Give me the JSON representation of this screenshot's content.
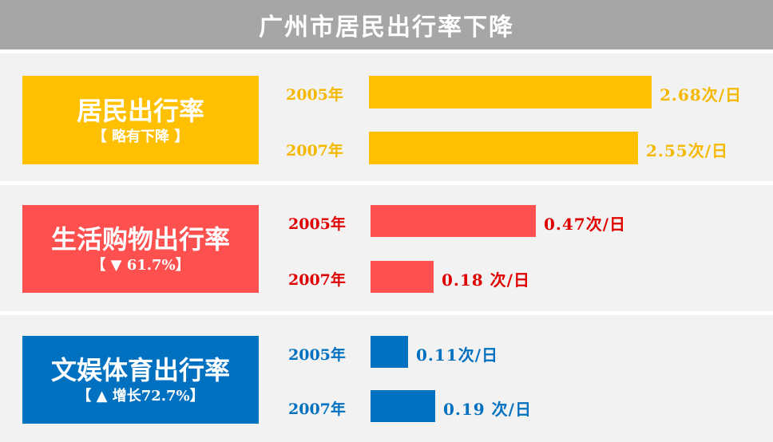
{
  "header": {
    "title": "广州市居民出行率下降"
  },
  "panels": [
    {
      "title": "居民出行率",
      "subtitle": "【 略有下降 】",
      "color": "#ffc000",
      "text_color": "#f5b800",
      "rows": [
        {
          "year": "2005年",
          "value": 2.68,
          "label": "2.68次/日"
        },
        {
          "year": "2007年",
          "value": 2.55,
          "label": "2.55次/日"
        }
      ]
    },
    {
      "title": "生活购物出行率",
      "subtitle": "【  ▼  61.7%】",
      "color": "#ff5050",
      "text_color": "#e00000",
      "rows": [
        {
          "year": "2005年",
          "value": 0.47,
          "label": "0.47次/日"
        },
        {
          "year": "2007年",
          "value": 0.18,
          "label": "0.18 次/日"
        }
      ]
    },
    {
      "title": "文娱体育出行率",
      "subtitle": "【  ▲  增长72.7%】",
      "color": "#0070c0",
      "text_color": "#0070c0",
      "rows": [
        {
          "year": "2005年",
          "value": 0.11,
          "label": "0.11次/日"
        },
        {
          "year": "2007年",
          "value": 0.19,
          "label": "0.19 次/日"
        }
      ]
    }
  ],
  "chart_data": {
    "type": "bar",
    "title": "广州市居民出行率下降",
    "categories": [
      "2005年",
      "2007年"
    ],
    "series": [
      {
        "name": "居民出行率",
        "values": [
          2.68,
          2.55
        ]
      },
      {
        "name": "生活购物出行率",
        "values": [
          0.47,
          0.18
        ]
      },
      {
        "name": "文娱体育出行率",
        "values": [
          0.11,
          0.19
        ]
      }
    ]
  }
}
